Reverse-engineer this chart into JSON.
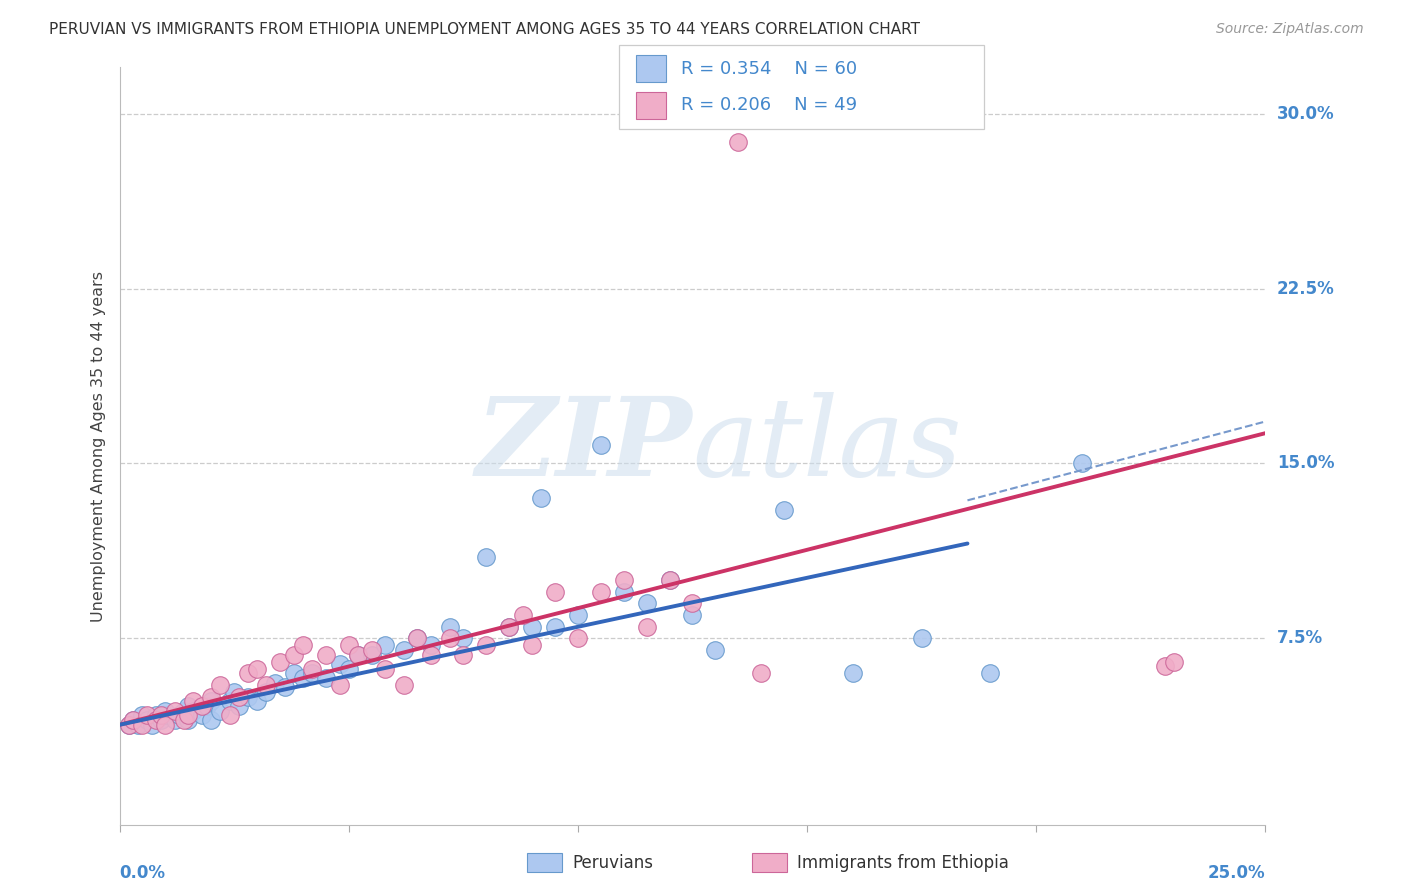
{
  "title": "PERUVIAN VS IMMIGRANTS FROM ETHIOPIA UNEMPLOYMENT AMONG AGES 35 TO 44 YEARS CORRELATION CHART",
  "source": "Source: ZipAtlas.com",
  "ylabel": "Unemployment Among Ages 35 to 44 years",
  "ytick_labels": [
    "7.5%",
    "15.0%",
    "22.5%",
    "30.0%"
  ],
  "ytick_values": [
    0.075,
    0.15,
    0.225,
    0.3
  ],
  "xlim": [
    0.0,
    0.25
  ],
  "ylim": [
    -0.005,
    0.32
  ],
  "blue_R": 0.354,
  "blue_N": 60,
  "pink_R": 0.206,
  "pink_N": 49,
  "blue_fill": "#adc8f0",
  "pink_fill": "#f0adc8",
  "blue_edge": "#6699cc",
  "pink_edge": "#cc6699",
  "blue_line": "#3366bb",
  "pink_line": "#cc3366",
  "blue_dash": "#7799cc",
  "legend_blue": "Peruvians",
  "legend_pink": "Immigrants from Ethiopia",
  "blue_line_intercept": 0.038,
  "blue_line_slope": 0.42,
  "pink_line_intercept": 0.038,
  "pink_line_slope": 0.5,
  "blue_dash_intercept": 0.038,
  "blue_dash_slope": 0.52,
  "blue_line_xend": 0.185,
  "blue_scatter_x": [
    0.002,
    0.003,
    0.004,
    0.005,
    0.006,
    0.007,
    0.008,
    0.009,
    0.01,
    0.01,
    0.012,
    0.013,
    0.014,
    0.015,
    0.015,
    0.016,
    0.018,
    0.019,
    0.02,
    0.02,
    0.022,
    0.024,
    0.025,
    0.026,
    0.028,
    0.03,
    0.032,
    0.034,
    0.036,
    0.038,
    0.04,
    0.042,
    0.045,
    0.048,
    0.05,
    0.052,
    0.055,
    0.058,
    0.062,
    0.065,
    0.068,
    0.072,
    0.075,
    0.08,
    0.085,
    0.09,
    0.092,
    0.095,
    0.1,
    0.105,
    0.11,
    0.115,
    0.12,
    0.125,
    0.13,
    0.145,
    0.16,
    0.175,
    0.19,
    0.21
  ],
  "blue_scatter_y": [
    0.038,
    0.04,
    0.038,
    0.042,
    0.04,
    0.038,
    0.042,
    0.04,
    0.042,
    0.044,
    0.04,
    0.042,
    0.044,
    0.04,
    0.046,
    0.044,
    0.042,
    0.046,
    0.04,
    0.048,
    0.044,
    0.048,
    0.052,
    0.046,
    0.05,
    0.048,
    0.052,
    0.056,
    0.054,
    0.06,
    0.058,
    0.06,
    0.058,
    0.064,
    0.062,
    0.068,
    0.068,
    0.072,
    0.07,
    0.075,
    0.072,
    0.08,
    0.075,
    0.11,
    0.08,
    0.08,
    0.135,
    0.08,
    0.085,
    0.158,
    0.095,
    0.09,
    0.1,
    0.085,
    0.07,
    0.13,
    0.06,
    0.075,
    0.06,
    0.15
  ],
  "pink_scatter_x": [
    0.002,
    0.003,
    0.005,
    0.006,
    0.008,
    0.009,
    0.01,
    0.012,
    0.014,
    0.015,
    0.016,
    0.018,
    0.02,
    0.022,
    0.024,
    0.026,
    0.028,
    0.03,
    0.032,
    0.035,
    0.038,
    0.04,
    0.042,
    0.045,
    0.048,
    0.05,
    0.052,
    0.055,
    0.058,
    0.062,
    0.065,
    0.068,
    0.072,
    0.075,
    0.08,
    0.085,
    0.088,
    0.09,
    0.095,
    0.1,
    0.105,
    0.11,
    0.115,
    0.12,
    0.125,
    0.135,
    0.14,
    0.228,
    0.23
  ],
  "pink_scatter_y": [
    0.038,
    0.04,
    0.038,
    0.042,
    0.04,
    0.042,
    0.038,
    0.044,
    0.04,
    0.042,
    0.048,
    0.046,
    0.05,
    0.055,
    0.042,
    0.05,
    0.06,
    0.062,
    0.055,
    0.065,
    0.068,
    0.072,
    0.062,
    0.068,
    0.055,
    0.072,
    0.068,
    0.07,
    0.062,
    0.055,
    0.075,
    0.068,
    0.075,
    0.068,
    0.072,
    0.08,
    0.085,
    0.072,
    0.095,
    0.075,
    0.095,
    0.1,
    0.08,
    0.1,
    0.09,
    0.288,
    0.06,
    0.063,
    0.065
  ]
}
